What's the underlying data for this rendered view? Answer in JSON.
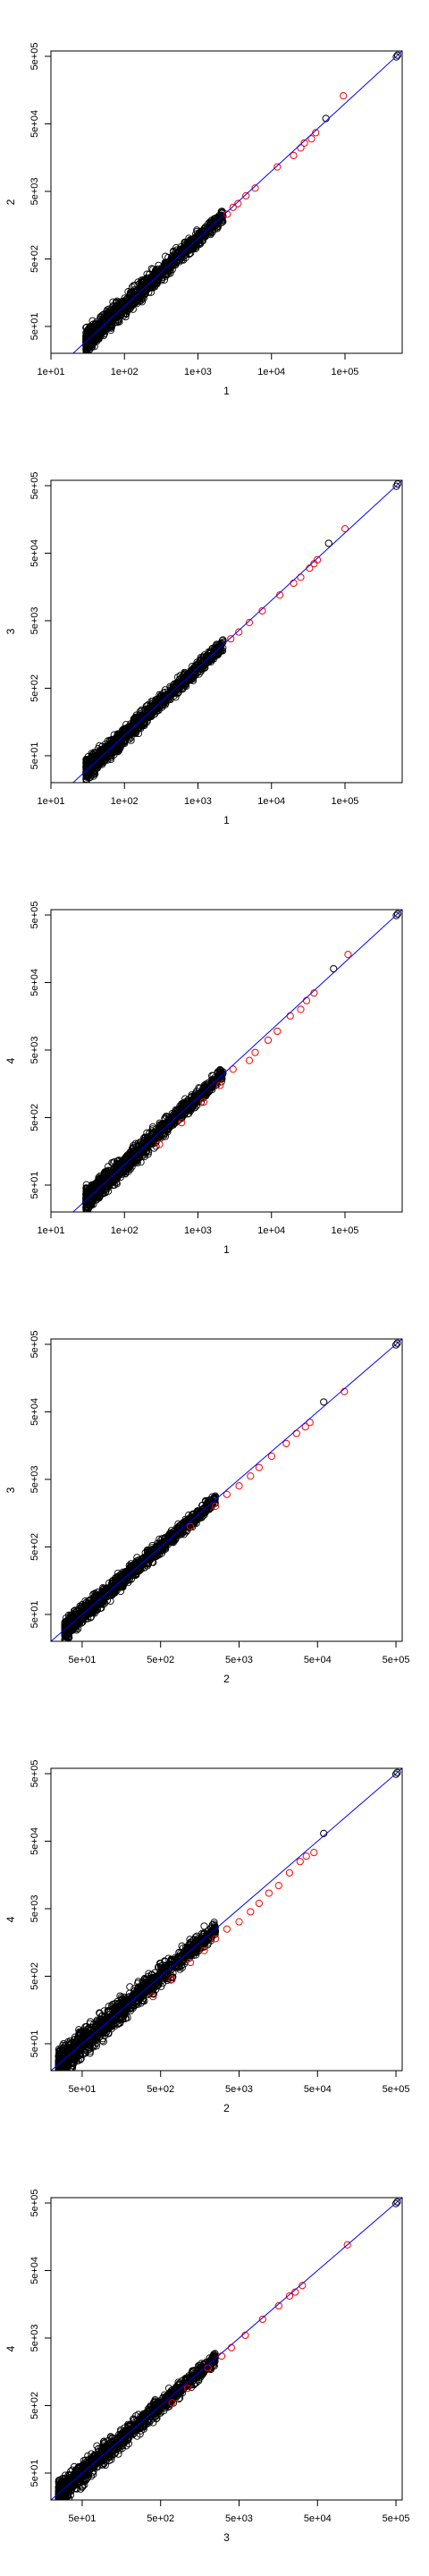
{
  "chart_data": [
    {
      "type": "scatter",
      "xlabel": "1",
      "ylabel": "2",
      "xscale": "log",
      "yscale": "log",
      "xlim": [
        10,
        600000
      ],
      "ylim": [
        20,
        600000
      ],
      "xticks": [
        10,
        100,
        1000,
        10000,
        100000
      ],
      "xtick_labels": [
        "1e+01",
        "1e+02",
        "1e+03",
        "1e+04",
        "1e+05"
      ],
      "yticks": [
        50,
        500,
        5000,
        50000,
        500000
      ],
      "ytick_labels": [
        "5e+01",
        "5e+02",
        "5e+03",
        "5e+04",
        "5e+05"
      ],
      "reference_line": "y = x",
      "colors": {
        "points": "#000000",
        "outliers": "#ff0000",
        "reference_line": "#0000ff"
      },
      "cloud": {
        "x_range": [
          30,
          2200
        ],
        "spread": 0.07
      },
      "highlight_points": [
        [
          2500,
          2300
        ],
        [
          3000,
          2900
        ],
        [
          3500,
          3300
        ],
        [
          4500,
          4300
        ],
        [
          6000,
          5600
        ],
        [
          12000,
          11500
        ],
        [
          20000,
          17000
        ],
        [
          25000,
          22000
        ],
        [
          28000,
          26000
        ],
        [
          35000,
          30000
        ],
        [
          40000,
          37000
        ],
        [
          55000,
          60000
        ],
        [
          95000,
          130000
        ],
        [
          500000,
          490000
        ],
        [
          520000,
          520000
        ]
      ],
      "highlight_colors": [
        "red",
        "red",
        "red",
        "red",
        "red",
        "red",
        "red",
        "red",
        "red",
        "red",
        "red",
        "black",
        "red",
        "black",
        "black"
      ]
    },
    {
      "type": "scatter",
      "xlabel": "1",
      "ylabel": "3",
      "xscale": "log",
      "yscale": "log",
      "xlim": [
        10,
        600000
      ],
      "ylim": [
        20,
        600000
      ],
      "xticks": [
        10,
        100,
        1000,
        10000,
        100000
      ],
      "xtick_labels": [
        "1e+01",
        "1e+02",
        "1e+03",
        "1e+04",
        "1e+05"
      ],
      "yticks": [
        50,
        500,
        5000,
        50000,
        500000
      ],
      "ytick_labels": [
        "5e+01",
        "5e+02",
        "5e+03",
        "5e+04",
        "5e+05"
      ],
      "reference_line": "y = x",
      "colors": {
        "points": "#000000",
        "outliers": "#ff0000",
        "reference_line": "#0000ff"
      },
      "cloud": {
        "x_range": [
          30,
          2200
        ],
        "spread": 0.06
      },
      "highlight_points": [
        [
          2800,
          2700
        ],
        [
          3600,
          3400
        ],
        [
          5000,
          4700
        ],
        [
          7500,
          7000
        ],
        [
          13000,
          12000
        ],
        [
          20000,
          18000
        ],
        [
          25000,
          22000
        ],
        [
          33000,
          30000
        ],
        [
          38000,
          35000
        ],
        [
          42000,
          40000
        ],
        [
          60000,
          70000
        ],
        [
          100000,
          115000
        ],
        [
          500000,
          490000
        ],
        [
          520000,
          530000
        ]
      ],
      "highlight_colors": [
        "red",
        "red",
        "red",
        "red",
        "red",
        "red",
        "red",
        "red",
        "red",
        "red",
        "black",
        "red",
        "black",
        "black"
      ]
    },
    {
      "type": "scatter",
      "xlabel": "1",
      "ylabel": "4",
      "xscale": "log",
      "yscale": "log",
      "xlim": [
        10,
        600000
      ],
      "ylim": [
        20,
        600000
      ],
      "xticks": [
        10,
        100,
        1000,
        10000,
        100000
      ],
      "xtick_labels": [
        "1e+01",
        "1e+02",
        "1e+03",
        "1e+04",
        "1e+05"
      ],
      "yticks": [
        50,
        500,
        5000,
        50000,
        500000
      ],
      "ytick_labels": [
        "5e+01",
        "5e+02",
        "5e+03",
        "5e+04",
        "5e+05"
      ],
      "reference_line": "y = x",
      "colors": {
        "points": "#000000",
        "outliers": "#ff0000",
        "reference_line": "#0000ff"
      },
      "cloud": {
        "x_range": [
          30,
          2200
        ],
        "spread": 0.07
      },
      "highlight_points": [
        [
          300,
          200
        ],
        [
          600,
          420
        ],
        [
          1200,
          850
        ],
        [
          2000,
          1500
        ],
        [
          3000,
          2600
        ],
        [
          5000,
          3500
        ],
        [
          6000,
          4600
        ],
        [
          9000,
          7000
        ],
        [
          12000,
          9500
        ],
        [
          18000,
          16000
        ],
        [
          25000,
          20000
        ],
        [
          30000,
          27000
        ],
        [
          38000,
          35000
        ],
        [
          70000,
          80000
        ],
        [
          110000,
          130000
        ],
        [
          500000,
          490000
        ],
        [
          520000,
          520000
        ]
      ],
      "highlight_colors": [
        "red",
        "red",
        "red",
        "red",
        "red",
        "red",
        "red",
        "red",
        "red",
        "red",
        "red",
        "red",
        "red",
        "black",
        "red",
        "black",
        "black"
      ]
    },
    {
      "type": "scatter",
      "xlabel": "2",
      "ylabel": "3",
      "xscale": "log",
      "yscale": "log",
      "xlim": [
        20,
        600000
      ],
      "ylim": [
        20,
        600000
      ],
      "xticks": [
        50,
        500,
        5000,
        50000,
        500000
      ],
      "xtick_labels": [
        "5e+01",
        "5e+02",
        "5e+03",
        "5e+04",
        "5e+05"
      ],
      "yticks": [
        50,
        500,
        5000,
        50000,
        500000
      ],
      "ytick_labels": [
        "5e+01",
        "5e+02",
        "5e+03",
        "5e+04",
        "5e+05"
      ],
      "reference_line": "y = x",
      "colors": {
        "points": "#000000",
        "outliers": "#ff0000",
        "reference_line": "#0000ff"
      },
      "cloud": {
        "x_range": [
          30,
          2500
        ],
        "spread": 0.06
      },
      "highlight_points": [
        [
          1200,
          1000
        ],
        [
          2500,
          2000
        ],
        [
          3500,
          3000
        ],
        [
          5000,
          4000
        ],
        [
          7000,
          5600
        ],
        [
          9000,
          7500
        ],
        [
          13000,
          11000
        ],
        [
          20000,
          17000
        ],
        [
          27000,
          24000
        ],
        [
          35000,
          30000
        ],
        [
          40000,
          35000
        ],
        [
          60000,
          70000
        ],
        [
          110000,
          100000
        ],
        [
          500000,
          490000
        ],
        [
          520000,
          520000
        ]
      ],
      "highlight_colors": [
        "red",
        "red",
        "red",
        "red",
        "red",
        "red",
        "red",
        "red",
        "red",
        "red",
        "red",
        "black",
        "red",
        "black",
        "black"
      ]
    },
    {
      "type": "scatter",
      "xlabel": "2",
      "ylabel": "4",
      "xscale": "log",
      "yscale": "log",
      "xlim": [
        20,
        600000
      ],
      "ylim": [
        20,
        600000
      ],
      "xticks": [
        50,
        500,
        5000,
        50000,
        500000
      ],
      "xtick_labels": [
        "5e+01",
        "5e+02",
        "5e+03",
        "5e+04",
        "5e+05"
      ],
      "yticks": [
        50,
        500,
        5000,
        50000,
        500000
      ],
      "ytick_labels": [
        "5e+01",
        "5e+02",
        "5e+03",
        "5e+04",
        "5e+05"
      ],
      "reference_line": "y = x",
      "colors": {
        "points": "#000000",
        "outliers": "#ff0000",
        "reference_line": "#0000ff"
      },
      "cloud": {
        "x_range": [
          25,
          2500
        ],
        "spread": 0.09
      },
      "highlight_points": [
        [
          400,
          250
        ],
        [
          700,
          450
        ],
        [
          1200,
          800
        ],
        [
          1800,
          1200
        ],
        [
          2500,
          1800
        ],
        [
          3500,
          2500
        ],
        [
          5000,
          3200
        ],
        [
          7000,
          4500
        ],
        [
          9000,
          6000
        ],
        [
          12000,
          8500
        ],
        [
          16000,
          11000
        ],
        [
          22000,
          17000
        ],
        [
          30000,
          25000
        ],
        [
          36000,
          30000
        ],
        [
          45000,
          34000
        ],
        [
          60000,
          65000
        ],
        [
          500000,
          490000
        ],
        [
          520000,
          520000
        ]
      ],
      "highlight_colors": [
        "red",
        "red",
        "red",
        "red",
        "red",
        "red",
        "red",
        "red",
        "red",
        "red",
        "red",
        "red",
        "red",
        "red",
        "red",
        "black",
        "black",
        "black"
      ]
    },
    {
      "type": "scatter",
      "xlabel": "3",
      "ylabel": "4",
      "xscale": "log",
      "yscale": "log",
      "xlim": [
        20,
        600000
      ],
      "ylim": [
        20,
        600000
      ],
      "xticks": [
        50,
        500,
        5000,
        50000,
        500000
      ],
      "xtick_labels": [
        "5e+01",
        "5e+02",
        "5e+03",
        "5e+04",
        "5e+05"
      ],
      "yticks": [
        50,
        500,
        5000,
        50000,
        500000
      ],
      "ytick_labels": [
        "5e+01",
        "5e+02",
        "5e+03",
        "5e+04",
        "5e+05"
      ],
      "reference_line": "y = x",
      "colors": {
        "points": "#000000",
        "outliers": "#ff0000",
        "reference_line": "#0000ff"
      },
      "cloud": {
        "x_range": [
          25,
          2500
        ],
        "spread": 0.07
      },
      "highlight_points": [
        [
          700,
          550
        ],
        [
          1100,
          900
        ],
        [
          2000,
          1800
        ],
        [
          3000,
          2700
        ],
        [
          4000,
          3600
        ],
        [
          6000,
          5500
        ],
        [
          10000,
          9500
        ],
        [
          16000,
          15000
        ],
        [
          22000,
          21000
        ],
        [
          26000,
          24000
        ],
        [
          32000,
          30000
        ],
        [
          120000,
          120000
        ],
        [
          500000,
          490000
        ],
        [
          520000,
          520000
        ]
      ],
      "highlight_colors": [
        "red",
        "red",
        "red",
        "red",
        "red",
        "red",
        "red",
        "red",
        "red",
        "red",
        "red",
        "red",
        "black",
        "black"
      ]
    }
  ]
}
